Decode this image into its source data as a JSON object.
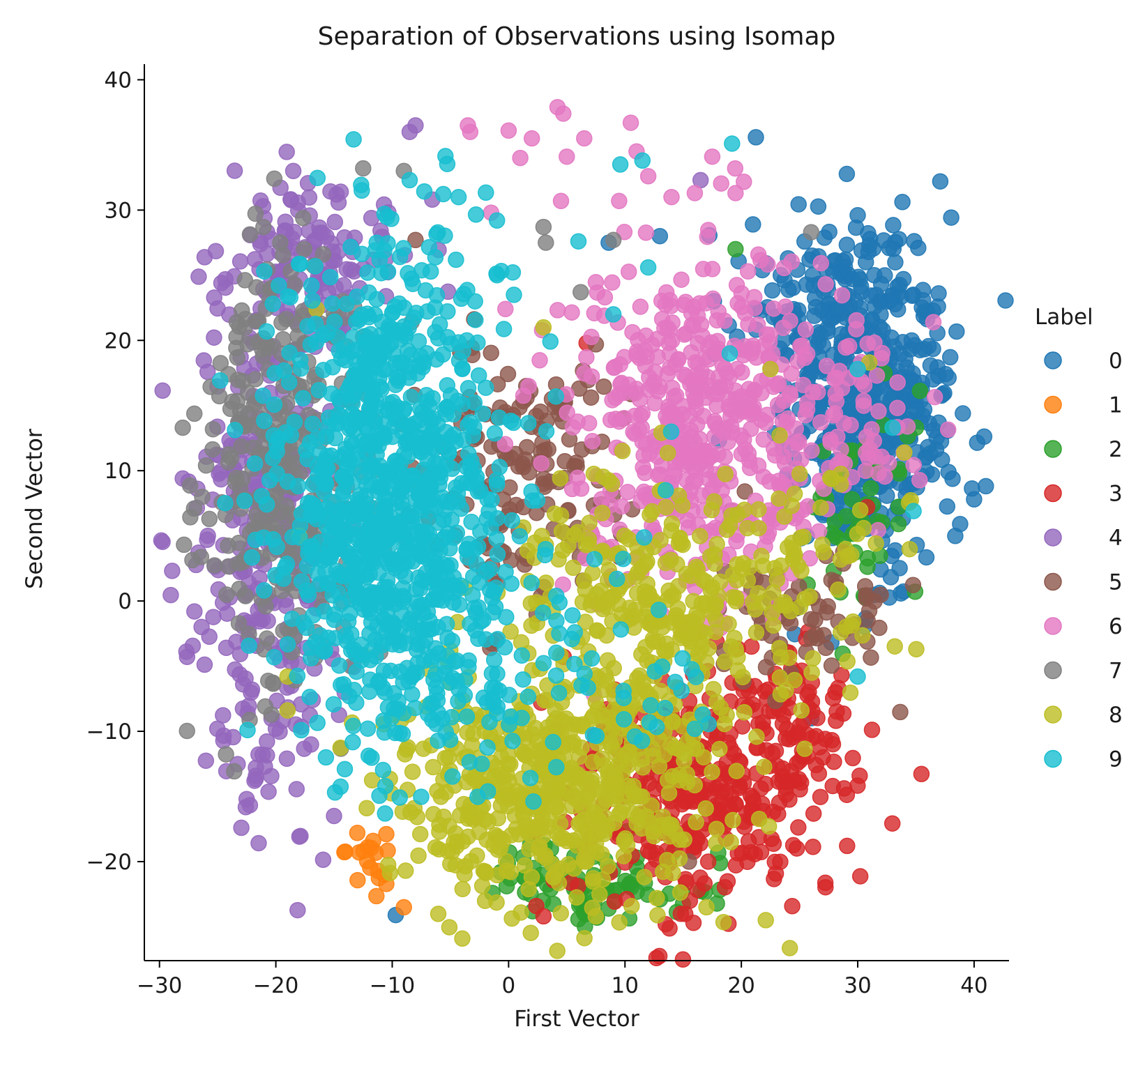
{
  "chart_data": {
    "type": "scatter",
    "title": "Separation of Observations using Isomap",
    "xlabel": "First Vector",
    "ylabel": "Second Vector",
    "xlim": [
      -31.3,
      43.0
    ],
    "ylim": [
      -27.6,
      41.2
    ],
    "xticks": [
      -30,
      -20,
      -10,
      0,
      10,
      20,
      30,
      40
    ],
    "yticks": [
      -20,
      -10,
      0,
      10,
      20,
      30,
      40
    ],
    "xtick_labels": [
      "−30",
      "−20",
      "−10",
      "0",
      "10",
      "20",
      "30",
      "40"
    ],
    "ytick_labels": [
      "−20",
      "−10",
      "0",
      "10",
      "20",
      "30",
      "40"
    ],
    "grid": false,
    "legend": {
      "title": "Label",
      "placement": "outside-right"
    },
    "series": [
      {
        "name": "0",
        "color": "#1f77b4",
        "clusters": [
          {
            "cx": 31,
            "cy": 15,
            "sx": 3.3,
            "sy": 6.5,
            "n": 520
          },
          {
            "cx": 27,
            "cy": 22,
            "sx": 4,
            "sy": 3,
            "n": 80
          }
        ],
        "outliers": [
          [
            35.2,
            27.1
          ],
          [
            31,
            27.3
          ],
          [
            30,
            29.6
          ],
          [
            21,
            28.9
          ],
          [
            40,
            7.8
          ],
          [
            -9.7,
            -24.1
          ],
          [
            26,
            -9
          ],
          [
            13,
            28
          ],
          [
            8.6,
            27.5
          ]
        ]
      },
      {
        "name": "1",
        "color": "#ff7f0e",
        "clusters": [
          {
            "cx": -11.5,
            "cy": -19.8,
            "sx": 1.1,
            "sy": 1.2,
            "n": 18
          }
        ],
        "outliers": [
          [
            -9,
            -23.5
          ],
          [
            -13,
            -17.8
          ]
        ]
      },
      {
        "name": "2",
        "color": "#2ca02c",
        "clusters": [
          {
            "cx": 7,
            "cy": -21.5,
            "sx": 5,
            "sy": 1.6,
            "n": 90
          },
          {
            "cx": 30,
            "cy": 8,
            "sx": 3,
            "sy": 5,
            "n": 45
          }
        ],
        "outliers": [
          [
            19.5,
            27
          ],
          [
            7.6,
            -24.3
          ],
          [
            30.6,
            0.3
          ],
          [
            35,
            13.3
          ]
        ]
      },
      {
        "name": "3",
        "color": "#d62728",
        "clusters": [
          {
            "cx": 17,
            "cy": -14.5,
            "sx": 5.5,
            "sy": 4.5,
            "n": 340
          },
          {
            "cx": 24,
            "cy": -8,
            "sx": 3,
            "sy": 3,
            "n": 60
          }
        ],
        "outliers": [
          [
            13.5,
            -24.8
          ],
          [
            3,
            -24.2
          ],
          [
            27,
            -12
          ],
          [
            30.8,
            7.2
          ],
          [
            6.7,
            19.8
          ]
        ]
      },
      {
        "name": "4",
        "color": "#9467bd",
        "clusters": [
          {
            "cx": -21,
            "cy": 5,
            "sx": 3.2,
            "sy": 9.5,
            "n": 330
          },
          {
            "cx": -16,
            "cy": 26,
            "sx": 4,
            "sy": 3.5,
            "n": 130
          }
        ],
        "outliers": [
          [
            -8,
            36.5
          ],
          [
            -8.5,
            36
          ],
          [
            -18.5,
            33
          ],
          [
            -28,
            9.4
          ],
          [
            -15,
            -16.5
          ],
          [
            16.5,
            32.3
          ],
          [
            -27,
            -0.8
          ],
          [
            -20,
            -9.8
          ]
        ]
      },
      {
        "name": "5",
        "color": "#8c564b",
        "clusters": [
          {
            "cx": 1,
            "cy": 10,
            "sx": 4.5,
            "sy": 5,
            "n": 150
          },
          {
            "cx": 25,
            "cy": -1,
            "sx": 4,
            "sy": 3,
            "n": 70
          }
        ],
        "outliers": [
          [
            15.5,
            -20
          ],
          [
            7.5,
            19.7
          ],
          [
            -8,
            27.7
          ]
        ]
      },
      {
        "name": "6",
        "color": "#e377c2",
        "clusters": [
          {
            "cx": 16,
            "cy": 13,
            "sx": 5.5,
            "sy": 6.5,
            "n": 480
          },
          {
            "cx": 29,
            "cy": 14,
            "sx": 3.5,
            "sy": 5,
            "n": 90
          }
        ],
        "outliers": [
          [
            4.2,
            37.9
          ],
          [
            4.7,
            37.4
          ],
          [
            -3.5,
            36.5
          ],
          [
            -3.3,
            36
          ],
          [
            10.5,
            36.7
          ],
          [
            0,
            36.1
          ],
          [
            2,
            35.5
          ],
          [
            6.5,
            35.5
          ],
          [
            11,
            34.5
          ],
          [
            17.5,
            34.1
          ],
          [
            5,
            34.1
          ],
          [
            1,
            34
          ],
          [
            12,
            32.6
          ],
          [
            16,
            31.3
          ],
          [
            19.5,
            31.3
          ],
          [
            4.5,
            30.7
          ],
          [
            9.5,
            30.7
          ],
          [
            -1.5,
            29.8
          ],
          [
            36.5,
            21.4
          ],
          [
            14,
            31
          ]
        ]
      },
      {
        "name": "7",
        "color": "#7f7f7f",
        "clusters": [
          {
            "cx": -19,
            "cy": 10,
            "sx": 3.5,
            "sy": 8.5,
            "n": 330
          }
        ],
        "outliers": [
          [
            -12.5,
            33.2
          ],
          [
            26,
            28.3
          ],
          [
            3,
            28.7
          ],
          [
            9,
            27.7
          ],
          [
            -28,
            13.3
          ],
          [
            -26,
            10.4
          ],
          [
            -9,
            33
          ],
          [
            3.2,
            27.5
          ],
          [
            6.2,
            23.7
          ]
        ]
      },
      {
        "name": "8",
        "color": "#bcbd22",
        "clusters": [
          {
            "cx": 4,
            "cy": -14,
            "sx": 7.5,
            "sy": 4.5,
            "n": 560
          },
          {
            "cx": 12,
            "cy": 0,
            "sx": 6,
            "sy": 4.5,
            "n": 260
          },
          {
            "cx": 26,
            "cy": 3,
            "sx": 4,
            "sy": 5,
            "n": 70
          }
        ],
        "outliers": [
          [
            17,
            -23.5
          ],
          [
            -19,
            -5.8
          ],
          [
            -19,
            -8.4
          ],
          [
            22.5,
            17.8
          ],
          [
            31,
            18.3
          ],
          [
            34,
            11.4
          ],
          [
            -16.5,
            22.4
          ],
          [
            3,
            21
          ],
          [
            -18,
            5
          ]
        ]
      },
      {
        "name": "9",
        "color": "#17becf",
        "clusters": [
          {
            "cx": -10.5,
            "cy": 9,
            "sx": 4.8,
            "sy": 9.2,
            "n": 900
          },
          {
            "cx": -4,
            "cy": -4,
            "sx": 5.5,
            "sy": 5.5,
            "n": 130
          },
          {
            "cx": 10,
            "cy": -6,
            "sx": 4,
            "sy": 4,
            "n": 35
          }
        ],
        "outliers": [
          [
            19.2,
            35.1
          ],
          [
            9.6,
            33.5
          ],
          [
            11.5,
            33.8
          ],
          [
            -4.3,
            31
          ],
          [
            -8.5,
            32.3
          ],
          [
            -21,
            25.3
          ],
          [
            -1,
            29.2
          ],
          [
            6,
            27.6
          ],
          [
            12,
            25.6
          ],
          [
            30,
            -5.8
          ],
          [
            34.8,
            6.9
          ],
          [
            33,
            13.3
          ],
          [
            30,
            17.8
          ],
          [
            13.5,
            8.5
          ],
          [
            19,
            19
          ],
          [
            9,
            22
          ],
          [
            -1,
            25
          ]
        ]
      }
    ]
  }
}
